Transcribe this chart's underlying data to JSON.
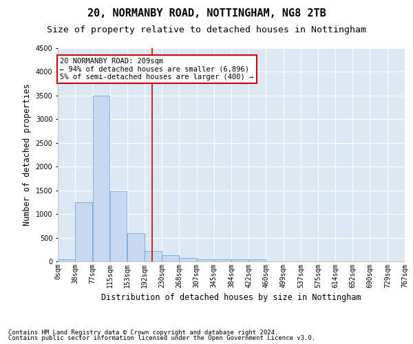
{
  "title": "20, NORMANBY ROAD, NOTTINGHAM, NG8 2TB",
  "subtitle": "Size of property relative to detached houses in Nottingham",
  "xlabel": "Distribution of detached houses by size in Nottingham",
  "ylabel": "Number of detached properties",
  "footnote1": "Contains HM Land Registry data © Crown copyright and database right 2024.",
  "footnote2": "Contains public sector information licensed under the Open Government Licence v3.0.",
  "annotation_line1": "20 NORMANBY ROAD: 209sqm",
  "annotation_line2": "← 94% of detached houses are smaller (6,896)",
  "annotation_line3": "5% of semi-detached houses are larger (400) →",
  "bar_color": "#c6d9f0",
  "bar_edge_color": "#5b9bd5",
  "vline_color": "#cc0000",
  "vline_x": 209,
  "bin_edges": [
    0,
    38,
    77,
    115,
    153,
    192,
    230,
    268,
    307,
    345,
    384,
    422,
    460,
    499,
    537,
    575,
    614,
    652,
    690,
    729,
    767
  ],
  "bar_heights": [
    50,
    1250,
    3500,
    1475,
    600,
    225,
    125,
    75,
    50,
    50,
    50,
    50,
    0,
    0,
    0,
    0,
    0,
    0,
    0,
    0
  ],
  "ylim": [
    0,
    4500
  ],
  "yticks": [
    0,
    500,
    1000,
    1500,
    2000,
    2500,
    3000,
    3500,
    4000,
    4500
  ],
  "bg_color": "#dde8f5",
  "grid_color": "#ffffff",
  "title_fontsize": 11,
  "subtitle_fontsize": 9.5,
  "tick_label_fontsize": 7,
  "axis_label_fontsize": 8.5,
  "footnote_fontsize": 6.5,
  "annotation_fontsize": 7.5
}
